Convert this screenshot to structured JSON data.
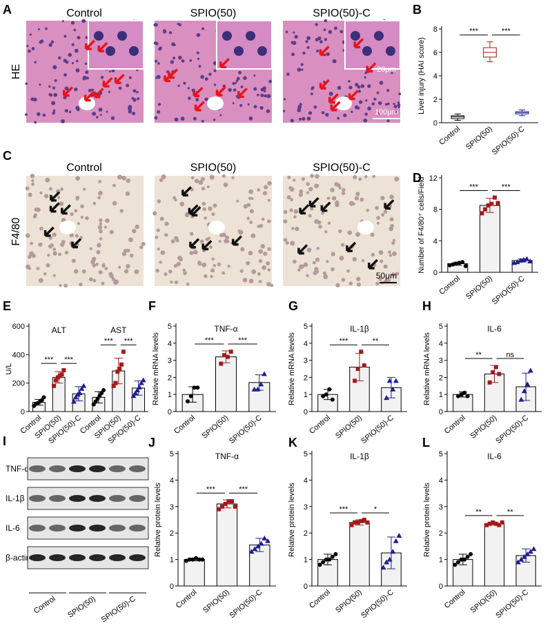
{
  "figure": {
    "panel_a": {
      "letter": "A",
      "row_label": "HE",
      "titles": [
        "Control",
        "SPIO(50)",
        "SPIO(50)-C"
      ],
      "scale_bar": "100μm",
      "inset_scale_bar": "20μm"
    },
    "panel_c": {
      "letter": "C",
      "row_label": "F4/80",
      "titles": [
        "Control",
        "SPIO(50)",
        "SPIO(50)-C"
      ],
      "scale_bar": "50μm"
    },
    "panel_i": {
      "letter": "I",
      "proteins": [
        "TNF-α",
        "IL-1β",
        "IL-6",
        "β-actin"
      ],
      "groups": [
        "Control",
        "SPIO(50)",
        "SPIO(50)-C"
      ]
    }
  },
  "chart_data": [
    {
      "panel": "B",
      "type": "box",
      "categories": [
        "Control",
        "SPIO(50)",
        "SPIO(50)-C"
      ],
      "colors": [
        "#000000",
        "#a31a1a",
        "#1f1f8f"
      ],
      "boxes": [
        {
          "min": 0.2,
          "q1": 0.35,
          "median": 0.5,
          "q3": 0.6,
          "max": 0.75
        },
        {
          "min": 5.2,
          "q1": 5.6,
          "median": 6.0,
          "q3": 6.4,
          "max": 6.9
        },
        {
          "min": 0.6,
          "q1": 0.75,
          "median": 0.85,
          "q3": 0.95,
          "max": 1.1
        }
      ],
      "ylabel": "Liver injury (HAI score)",
      "ylim": [
        0,
        8
      ],
      "yticks": [
        0,
        2,
        4,
        6,
        8
      ],
      "significance": [
        "***",
        "***"
      ]
    },
    {
      "panel": "D",
      "type": "bar",
      "categories": [
        "Control",
        "SPIO(50)",
        "SPIO(50)-C"
      ],
      "colors": [
        "#000000",
        "#a31a1a",
        "#1f1f8f"
      ],
      "markers": [
        "circle",
        "square",
        "triangle"
      ],
      "values": [
        1.1,
        8.5,
        1.5
      ],
      "errors": [
        0.2,
        0.9,
        0.2
      ],
      "points": [
        [
          0.9,
          1.0,
          1.1,
          1.2,
          1.3,
          0.8
        ],
        [
          7.5,
          8.0,
          8.5,
          8.7,
          9.5,
          8.8
        ],
        [
          1.2,
          1.3,
          1.5,
          1.6,
          1.7,
          1.4
        ]
      ],
      "ylabel": "Number of F4/80⁺ cells/Field",
      "ylim": [
        0,
        12
      ],
      "yticks": [
        0,
        4,
        8,
        12
      ],
      "significance": [
        "***",
        "***"
      ]
    },
    {
      "panel": "E",
      "type": "bar",
      "groups": [
        "ALT",
        "AST"
      ],
      "categories": [
        "Control",
        "SPIO(50)",
        "SPIO(50)-C",
        "Control",
        "SPIO(50)",
        "SPIO(50)-C"
      ],
      "colors": [
        "#000000",
        "#a31a1a",
        "#1f1f8f",
        "#000000",
        "#a31a1a",
        "#1f1f8f"
      ],
      "markers": [
        "circle",
        "square",
        "triangle",
        "circle",
        "square",
        "triangle"
      ],
      "values": [
        65,
        240,
        125,
        100,
        285,
        165
      ],
      "errors": [
        20,
        40,
        50,
        40,
        90,
        50
      ],
      "points": [
        [
          40,
          55,
          60,
          70,
          80,
          100
        ],
        [
          180,
          220,
          240,
          250,
          260,
          290
        ],
        [
          70,
          100,
          120,
          130,
          160,
          180
        ],
        [
          50,
          70,
          90,
          110,
          130,
          150
        ],
        [
          180,
          200,
          280,
          300,
          330,
          420
        ],
        [
          110,
          130,
          150,
          170,
          200,
          220
        ]
      ],
      "ylabel": "U/L",
      "ylim": [
        0,
        600
      ],
      "yticks": [
        0,
        200,
        400,
        600
      ],
      "significance": [
        "***",
        "***",
        "***",
        "***"
      ]
    },
    {
      "panel": "F",
      "type": "bar",
      "title": "TNF-α",
      "categories": [
        "Control",
        "SPIO(50)",
        "SPIO(50)-C"
      ],
      "colors": [
        "#000000",
        "#a31a1a",
        "#1f1f8f"
      ],
      "markers": [
        "circle",
        "square",
        "triangle"
      ],
      "values": [
        1.0,
        3.2,
        1.7
      ],
      "errors": [
        0.45,
        0.35,
        0.45
      ],
      "points": [
        [
          0.6,
          0.9,
          1.4,
          1.4
        ],
        [
          2.8,
          3.3,
          3.2,
          3.5
        ],
        [
          1.3,
          1.3,
          1.6,
          2.2
        ]
      ],
      "ylabel": "Relative mRNA levels",
      "ylim": [
        0,
        5
      ],
      "yticks": [
        0,
        1,
        2,
        3,
        4,
        5
      ],
      "significance": [
        "***",
        "***"
      ]
    },
    {
      "panel": "G",
      "type": "bar",
      "title": "IL-1β",
      "categories": [
        "Control",
        "SPIO(50)",
        "SPIO(50)-C"
      ],
      "colors": [
        "#000000",
        "#a31a1a",
        "#1f1f8f"
      ],
      "markers": [
        "circle",
        "square",
        "triangle"
      ],
      "values": [
        1.0,
        2.6,
        1.4
      ],
      "errors": [
        0.3,
        0.8,
        0.6
      ],
      "points": [
        [
          0.9,
          1.0,
          1.3,
          0.7
        ],
        [
          1.8,
          2.5,
          3.5,
          2.7
        ],
        [
          0.8,
          1.8,
          1.3,
          1.8
        ]
      ],
      "ylabel": "Relative mRNA levels",
      "ylim": [
        0,
        5
      ],
      "yticks": [
        0,
        1,
        2,
        3,
        4,
        5
      ],
      "significance": [
        "***",
        "**"
      ]
    },
    {
      "panel": "H",
      "type": "bar",
      "title": "IL-6",
      "categories": [
        "Control",
        "SPIO(50)",
        "SPIO(50)-C"
      ],
      "colors": [
        "#000000",
        "#a31a1a",
        "#1f1f8f"
      ],
      "markers": [
        "circle",
        "square",
        "triangle"
      ],
      "values": [
        1.0,
        2.2,
        1.45
      ],
      "errors": [
        0.15,
        0.5,
        0.8
      ],
      "points": [
        [
          0.9,
          1.0,
          1.1,
          0.9
        ],
        [
          1.7,
          2.3,
          2.6,
          2.2
        ],
        [
          0.7,
          1.2,
          1.6,
          2.4
        ]
      ],
      "ylabel": "Relative mRNA levels",
      "ylim": [
        0,
        5
      ],
      "yticks": [
        0,
        1,
        2,
        3,
        4,
        5
      ],
      "significance": [
        "**",
        "ns"
      ]
    },
    {
      "panel": "J",
      "type": "bar",
      "title": "TNF-α",
      "categories": [
        "Control",
        "SPIO(50)",
        "SPIO(50)-C"
      ],
      "colors": [
        "#000000",
        "#a31a1a",
        "#1f1f8f"
      ],
      "markers": [
        "circle",
        "square",
        "triangle"
      ],
      "values": [
        1.0,
        3.1,
        1.55
      ],
      "errors": [
        0.05,
        0.15,
        0.25
      ],
      "points": [
        [
          0.95,
          1.0,
          1.0,
          1.05,
          1.0,
          1.0
        ],
        [
          2.9,
          3.0,
          3.1,
          3.2,
          3.2,
          3.0
        ],
        [
          1.3,
          1.4,
          1.5,
          1.6,
          1.8,
          1.7
        ]
      ],
      "ylabel": "Relative protein levels",
      "ylim": [
        0,
        5
      ],
      "yticks": [
        0,
        1,
        2,
        3,
        4,
        5
      ],
      "significance": [
        "***",
        "***"
      ]
    },
    {
      "panel": "K",
      "type": "bar",
      "title": "IL-1β",
      "categories": [
        "Control",
        "SPIO(50)",
        "SPIO(50)-C"
      ],
      "colors": [
        "#000000",
        "#a31a1a",
        "#1f1f8f"
      ],
      "markers": [
        "circle",
        "square",
        "triangle"
      ],
      "values": [
        1.0,
        2.4,
        1.25
      ],
      "errors": [
        0.2,
        0.1,
        0.6
      ],
      "points": [
        [
          0.8,
          0.9,
          1.0,
          1.0,
          1.1,
          1.2
        ],
        [
          2.3,
          2.4,
          2.4,
          2.45,
          2.5,
          2.4
        ],
        [
          0.7,
          0.9,
          1.0,
          1.3,
          1.7,
          1.9
        ]
      ],
      "ylabel": "Relative protein levels",
      "ylim": [
        0,
        5
      ],
      "yticks": [
        0,
        1,
        2,
        3,
        4,
        5
      ],
      "significance": [
        "***",
        "*"
      ]
    },
    {
      "panel": "L",
      "type": "bar",
      "title": "IL-6",
      "categories": [
        "Control",
        "SPIO(50)",
        "SPIO(50)-C"
      ],
      "colors": [
        "#000000",
        "#a31a1a",
        "#1f1f8f"
      ],
      "markers": [
        "circle",
        "square",
        "triangle"
      ],
      "values": [
        1.0,
        2.35,
        1.15
      ],
      "errors": [
        0.2,
        0.05,
        0.25
      ],
      "points": [
        [
          0.8,
          0.9,
          1.0,
          1.0,
          1.1,
          1.2
        ],
        [
          2.3,
          2.35,
          2.4,
          2.35,
          2.3,
          2.4
        ],
        [
          0.9,
          1.0,
          1.1,
          1.2,
          1.3,
          1.4
        ]
      ],
      "ylabel": "Relative protein levels",
      "ylim": [
        0,
        5
      ],
      "yticks": [
        0,
        1,
        2,
        3,
        4,
        5
      ],
      "significance": [
        "**",
        "**"
      ]
    }
  ]
}
